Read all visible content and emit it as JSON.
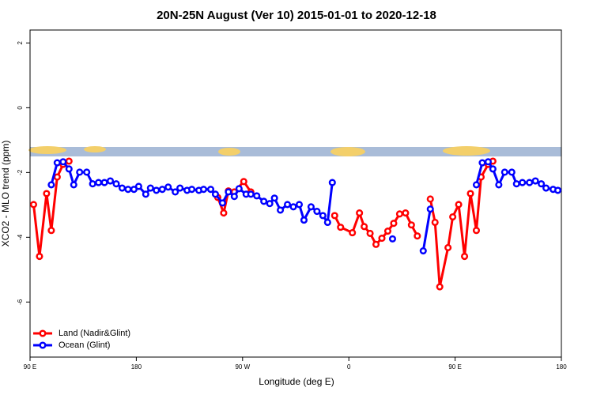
{
  "chart_data": {
    "type": "line",
    "title": "20N-25N August (Ver 10)   2015-01-01 to 2020-12-18",
    "x_label": "Longitude (deg E)",
    "y_label": "XCO2 - MLO trend (ppm)",
    "xlim": [
      90,
      540
    ],
    "ylim": [
      -7.7,
      2.4
    ],
    "xticks": [
      {
        "value": 90,
        "label": "90 E"
      },
      180,
      {
        "value": 270,
        "label": "90 W"
      },
      {
        "value": 360,
        "label": "0"
      },
      {
        "value": 450,
        "label": "90 E"
      },
      {
        "value": 540,
        "label": "180"
      }
    ],
    "yticks": [
      -6,
      -4,
      -2,
      0,
      2
    ],
    "legend": "bottom-left",
    "series": [
      {
        "name": "Land (Nadir&Glint)",
        "color": "#ff0000",
        "x": [
          93,
          98,
          104,
          108,
          113,
          118,
          123,
          null,
          249,
          254,
          258,
          263,
          271,
          277,
          null,
          348,
          353,
          363,
          369,
          373,
          378,
          383,
          388,
          393,
          398,
          403,
          408,
          413,
          418,
          null,
          429,
          433,
          437,
          444,
          448,
          453,
          458,
          463,
          468,
          472,
          478,
          482
        ],
        "values": [
          -2.99,
          -4.59,
          -2.65,
          -3.79,
          -2.14,
          -1.75,
          -1.65,
          null,
          -2.77,
          -3.25,
          -2.57,
          -2.6,
          -2.28,
          -2.6,
          null,
          -3.33,
          -3.69,
          -3.86,
          -3.25,
          -3.67,
          -3.88,
          -4.22,
          -4.03,
          -3.81,
          -3.57,
          -3.28,
          -3.25,
          -3.62,
          -3.96,
          null,
          -2.82,
          -3.54,
          -5.53,
          -4.32,
          -3.37,
          -2.99,
          -4.59,
          -2.65,
          -3.79,
          -2.14,
          -1.75,
          -1.65
        ]
      },
      {
        "name": "Ocean (Glint)",
        "color": "#0000ff",
        "x": [
          108,
          113,
          118,
          123,
          127,
          132,
          138,
          143,
          148,
          153,
          158,
          163,
          168,
          173,
          178,
          182,
          188,
          192,
          197,
          202,
          207,
          213,
          217,
          223,
          227,
          233,
          237,
          243,
          247,
          253,
          258,
          263,
          267,
          273,
          277,
          282,
          288,
          293,
          297,
          302,
          308,
          313,
          318,
          322,
          328,
          333,
          338,
          342,
          346,
          null,
          397,
          null,
          423,
          429,
          null,
          468,
          473,
          478,
          482,
          487,
          492,
          498,
          502,
          507,
          513,
          518,
          523,
          527,
          533,
          537
        ],
        "values": [
          -2.38,
          -1.7,
          -1.67,
          -1.89,
          -2.38,
          -1.99,
          -1.99,
          -2.35,
          -2.31,
          -2.31,
          -2.26,
          -2.35,
          -2.48,
          -2.52,
          -2.52,
          -2.43,
          -2.67,
          -2.48,
          -2.55,
          -2.52,
          -2.45,
          -2.6,
          -2.48,
          -2.55,
          -2.52,
          -2.55,
          -2.52,
          -2.52,
          -2.67,
          -2.94,
          -2.6,
          -2.74,
          -2.5,
          -2.67,
          -2.67,
          -2.72,
          -2.89,
          -2.96,
          -2.79,
          -3.16,
          -2.99,
          -3.06,
          -2.99,
          -3.47,
          -3.06,
          -3.2,
          -3.33,
          -3.54,
          -2.31,
          null,
          -4.05,
          null,
          -4.42,
          -3.13,
          null,
          -2.38,
          -1.7,
          -1.67,
          -1.89,
          -2.38,
          -1.99,
          -1.99,
          -2.35,
          -2.31,
          -2.31,
          -2.26,
          -2.35,
          -2.48,
          -2.52,
          -2.55
        ]
      }
    ]
  }
}
